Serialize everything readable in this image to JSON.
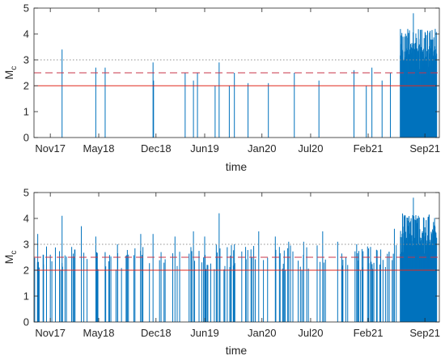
{
  "colors": {
    "stem": "#0072BD",
    "solid_threshold": "#E0281E",
    "dashed_threshold": "#C8344A",
    "dotted_threshold": "#909090",
    "axes": "#262626"
  },
  "chart_data": [
    {
      "type": "stem",
      "xlabel": "time",
      "ylabel": "M",
      "ylabel_subscript": "c",
      "xticks": [
        "Nov17",
        "May18",
        "Dec18",
        "Jun19",
        "Jan20",
        "Jul20",
        "Feb21",
        "Sep21"
      ],
      "xtick_dates": [
        "2017-11-01",
        "2018-05-01",
        "2018-12-01",
        "2019-06-01",
        "2020-01-01",
        "2020-07-01",
        "2021-02-01",
        "2021-09-01"
      ],
      "xlim": [
        "2017-09-01",
        "2021-10-25"
      ],
      "yticks": [
        0,
        1,
        2,
        3,
        4,
        5
      ],
      "ylim": [
        0,
        5
      ],
      "thresholds": [
        {
          "value": 2.0,
          "style": "solid"
        },
        {
          "value": 2.5,
          "style": "dashed"
        },
        {
          "value": 3.0,
          "style": "dotted"
        }
      ],
      "events": [
        {
          "date": "2017-12-15",
          "mc": 3.4
        },
        {
          "date": "2018-04-20",
          "mc": 2.7
        },
        {
          "date": "2018-05-25",
          "mc": 2.7
        },
        {
          "date": "2018-11-20",
          "mc": 2.9
        },
        {
          "date": "2018-11-22",
          "mc": 2.2
        },
        {
          "date": "2019-03-20",
          "mc": 2.5
        },
        {
          "date": "2019-04-20",
          "mc": 2.2
        },
        {
          "date": "2019-05-05",
          "mc": 2.5
        },
        {
          "date": "2019-07-10",
          "mc": 2.0
        },
        {
          "date": "2019-07-25",
          "mc": 2.9
        },
        {
          "date": "2019-09-01",
          "mc": 2.0
        },
        {
          "date": "2019-09-20",
          "mc": 2.5
        },
        {
          "date": "2019-11-10",
          "mc": 2.1
        },
        {
          "date": "2020-01-25",
          "mc": 2.1
        },
        {
          "date": "2020-05-01",
          "mc": 2.5
        },
        {
          "date": "2020-08-01",
          "mc": 2.2
        },
        {
          "date": "2020-12-10",
          "mc": 2.6
        },
        {
          "date": "2021-01-25",
          "mc": 2.0
        },
        {
          "date": "2021-02-15",
          "mc": 2.7
        },
        {
          "date": "2021-03-25",
          "mc": 2.2
        },
        {
          "date": "2021-04-25",
          "mc": 2.5
        }
      ]
    },
    {
      "type": "stem",
      "xlabel": "time",
      "ylabel": "M",
      "ylabel_subscript": "c",
      "xticks": [
        "Nov17",
        "May18",
        "Dec18",
        "Jun19",
        "Jan20",
        "Jul20",
        "Feb21",
        "Sep21"
      ],
      "xtick_dates": [
        "2017-11-01",
        "2018-05-01",
        "2018-12-01",
        "2019-06-01",
        "2020-01-01",
        "2020-07-01",
        "2021-02-01",
        "2021-09-01"
      ],
      "xlim": [
        "2017-09-01",
        "2021-10-25"
      ],
      "yticks": [
        0,
        1,
        2,
        3,
        4,
        5
      ],
      "ylim": [
        0,
        5
      ],
      "thresholds": [
        {
          "value": 2.0,
          "style": "solid"
        },
        {
          "value": 2.5,
          "style": "dashed"
        },
        {
          "value": 3.0,
          "style": "dotted"
        }
      ],
      "events": [
        {
          "date": "2017-09-15",
          "mc": 3.4
        },
        {
          "date": "2017-10-05",
          "mc": 2.6
        },
        {
          "date": "2017-11-01",
          "mc": 2.6
        },
        {
          "date": "2017-12-15",
          "mc": 4.1
        },
        {
          "date": "2018-01-20",
          "mc": 2.9
        },
        {
          "date": "2018-02-25",
          "mc": 3.7
        },
        {
          "date": "2018-04-20",
          "mc": 3.3
        },
        {
          "date": "2018-05-25",
          "mc": 2.7
        },
        {
          "date": "2018-07-10",
          "mc": 3.0
        },
        {
          "date": "2018-08-20",
          "mc": 2.6
        },
        {
          "date": "2018-10-05",
          "mc": 3.4
        },
        {
          "date": "2018-11-20",
          "mc": 3.4
        },
        {
          "date": "2018-12-20",
          "mc": 2.7
        },
        {
          "date": "2019-02-10",
          "mc": 3.3
        },
        {
          "date": "2019-04-20",
          "mc": 3.5
        },
        {
          "date": "2019-06-01",
          "mc": 3.3
        },
        {
          "date": "2019-07-25",
          "mc": 4.2
        },
        {
          "date": "2019-09-20",
          "mc": 3.0
        },
        {
          "date": "2019-11-01",
          "mc": 2.9
        },
        {
          "date": "2019-12-20",
          "mc": 3.5
        },
        {
          "date": "2020-02-20",
          "mc": 3.3
        },
        {
          "date": "2020-04-10",
          "mc": 3.1
        },
        {
          "date": "2020-06-05",
          "mc": 3.1
        },
        {
          "date": "2020-08-15",
          "mc": 3.5
        },
        {
          "date": "2020-10-10",
          "mc": 3.1
        },
        {
          "date": "2020-12-20",
          "mc": 3.0
        },
        {
          "date": "2021-02-10",
          "mc": 2.9
        },
        {
          "date": "2021-03-20",
          "mc": 2.8
        },
        {
          "date": "2021-04-20",
          "mc": 2.7
        },
        {
          "date": "2021-05-10",
          "mc": 3.6
        }
      ],
      "background_events": {
        "note": "dense sub-threshold events across the full record",
        "approx_range": [
          2.0,
          3.0
        ]
      }
    }
  ],
  "dense_burst": {
    "date_start": "2021-06-01",
    "date_end": "2021-10-15",
    "peak_date": "2021-07-20",
    "peak_mc": 4.8,
    "typical_range": [
      2.0,
      4.2
    ]
  }
}
